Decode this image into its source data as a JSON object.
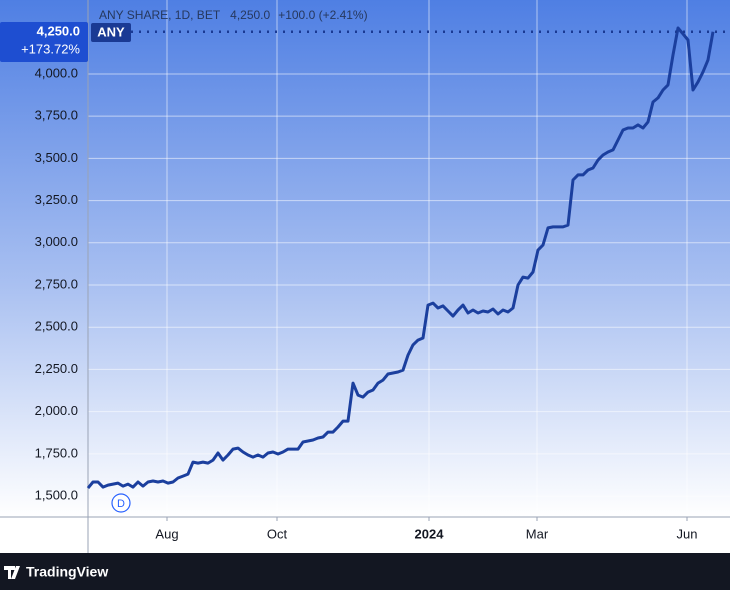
{
  "chart_data": {
    "type": "line",
    "title": "ANY SHARE, 1D, BET",
    "header_price": "4,250.0",
    "header_change": "+100.0 (+2.41%)",
    "symbol": "ANY",
    "last_price": {
      "value": 4250,
      "label": "4,250.0"
    },
    "change_percent": "+173.72%",
    "event_marker": "D",
    "brand": "TradingView",
    "color": "#1b3f9e",
    "grid": true,
    "ylim": [
      1376,
      4438
    ],
    "yticks": [
      {
        "value": 1500,
        "label": "1,500.0"
      },
      {
        "value": 1750,
        "label": "1,750.0"
      },
      {
        "value": 2000,
        "label": "2,000.0"
      },
      {
        "value": 2250,
        "label": "2,250.0"
      },
      {
        "value": 2500,
        "label": "2,500.0"
      },
      {
        "value": 2750,
        "label": "2,750.0"
      },
      {
        "value": 3000,
        "label": "3,000.0"
      },
      {
        "value": 3250,
        "label": "3,250.0"
      },
      {
        "value": 3500,
        "label": "3,500.0"
      },
      {
        "value": 3750,
        "label": "3,750.0"
      },
      {
        "value": 4000,
        "label": "4,000.0"
      }
    ],
    "xlim": [
      0,
      128.4
    ],
    "xticks": [
      {
        "value": 15.8,
        "label": "Aug"
      },
      {
        "value": 37.8,
        "label": "Oct"
      },
      {
        "value": 68.2,
        "label": "2024"
      },
      {
        "value": 89.8,
        "label": "Mar"
      },
      {
        "value": 119.8,
        "label": "Jun"
      }
    ],
    "values": [
      1547,
      1583,
      1583,
      1553,
      1565,
      1571,
      1577,
      1559,
      1571,
      1553,
      1583,
      1559,
      1583,
      1589,
      1583,
      1589,
      1577,
      1583,
      1607,
      1618,
      1630,
      1701,
      1695,
      1701,
      1695,
      1713,
      1755,
      1713,
      1743,
      1778,
      1784,
      1761,
      1743,
      1731,
      1743,
      1731,
      1755,
      1761,
      1749,
      1761,
      1778,
      1778,
      1778,
      1820,
      1826,
      1832,
      1844,
      1850,
      1879,
      1879,
      1909,
      1944,
      1944,
      2169,
      2098,
      2086,
      2116,
      2128,
      2169,
      2187,
      2223,
      2229,
      2235,
      2246,
      2335,
      2395,
      2424,
      2436,
      2631,
      2643,
      2614,
      2626,
      2596,
      2566,
      2602,
      2631,
      2584,
      2602,
      2584,
      2596,
      2590,
      2608,
      2578,
      2602,
      2590,
      2614,
      2750,
      2797,
      2791,
      2827,
      2957,
      2987,
      3088,
      3094,
      3094,
      3094,
      3105,
      3372,
      3402,
      3402,
      3431,
      3443,
      3490,
      3520,
      3538,
      3550,
      3609,
      3668,
      3680,
      3680,
      3698,
      3680,
      3716,
      3834,
      3858,
      3905,
      3935,
      4112,
      4272,
      4237,
      4201,
      3905,
      3953,
      4012,
      4083,
      4250
    ]
  }
}
